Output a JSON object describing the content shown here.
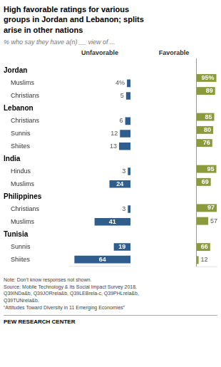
{
  "chart_data": [
    {
      "type": "bar",
      "title": "High favorable ratings for various\ngroups in Jordan and Lebanon; splits\narise in other nations",
      "subtitle": "% who say they have a(n) __ view of ...",
      "annotations": [
        "Note: Don’t know responses not shown.\nSource: Mobile Technology & Its Social Impact Survey 2018.\nQ39INDa&b, Q39JORrela&b, Q39LEBrela-c, Q39PHLrela&b,\nQ39TUNrela&b.\n“Attitudes Toward Diversity in 11 Emerging Economies”",
        "PEW RESEARCH CENTER"
      ],
      "orientation": "horizontal",
      "categories": [
        "Jordan",
        "Muslims",
        "Christians",
        "Lebanon",
        "Christians",
        "Sunnis",
        "Shiites",
        "India",
        "Hindus",
        "Muslims",
        "Philippines",
        "Christians",
        "Muslims",
        "Tunisia",
        "Sunnis",
        "Shiites"
      ],
      "series": [
        {
          "name": "Unfavorable",
          "color": "#2E5D8E",
          "values": [
            null,
            4,
            5,
            null,
            6,
            12,
            13,
            null,
            3,
            24,
            null,
            3,
            41,
            null,
            19,
            64
          ],
          "value_labels": [
            null,
            "4%",
            "5",
            null,
            "6",
            "12",
            "13",
            null,
            "3",
            "24",
            null,
            "3",
            "41",
            null,
            "19",
            "64"
          ]
        }
      ],
      "xlim": [
        0,
        70
      ],
      "grid": false,
      "data_labels": true,
      "tick_labels": "y"
    },
    {
      "type": "bar",
      "orientation": "horizontal",
      "categories": [
        "Jordan",
        "Muslims",
        "Christians",
        "Lebanon",
        "Christians",
        "Sunnis",
        "Shiites",
        "India",
        "Hindus",
        "Muslims",
        "Philippines",
        "Christians",
        "Muslims",
        "Tunisia",
        "Sunnis",
        "Shiites"
      ],
      "series": [
        {
          "name": "Favorable",
          "color": "#8A9A3C",
          "values": [
            null,
            95,
            89,
            null,
            85,
            80,
            76,
            null,
            95,
            69,
            null,
            97,
            57,
            null,
            66,
            12
          ],
          "value_labels": [
            null,
            "95%",
            "89",
            null,
            "85",
            "80",
            "76",
            null,
            "95",
            "69",
            null,
            "97",
            "57",
            null,
            "66",
            "12"
          ]
        }
      ],
      "xlim": [
        0,
        100
      ],
      "grid": false,
      "data_labels": true,
      "tick_labels": false
    }
  ]
}
